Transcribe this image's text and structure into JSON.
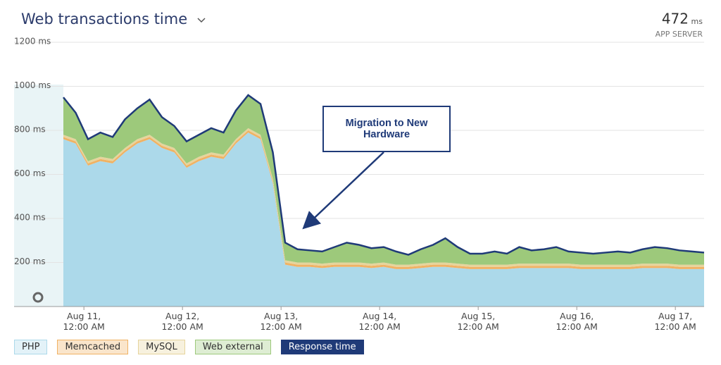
{
  "chart_data": {
    "type": "stacked-area",
    "title": "Web transactions time",
    "summary": {
      "value": "472",
      "unit": "ms",
      "label": "APP SERVER"
    },
    "annotation": "Migration to New Hardware",
    "xlim": [
      "Aug 10, 7:00 AM",
      "Aug 17, 7:00 AM"
    ],
    "xticks": [
      "Aug 11, 12:00 AM",
      "Aug 12, 12:00 AM",
      "Aug 13, 12:00 AM",
      "Aug 14, 12:00 AM",
      "Aug 15, 12:00 AM",
      "Aug 16, 12:00 AM",
      "Aug 17, 12:00 AM"
    ],
    "ylim": [
      0,
      1200
    ],
    "yticks": [
      {
        "value": 200,
        "label": "200 ms"
      },
      {
        "value": 400,
        "label": "400 ms"
      },
      {
        "value": 600,
        "label": "600 ms"
      },
      {
        "value": 800,
        "label": "800 ms"
      },
      {
        "value": 1000,
        "label": "1000 ms"
      },
      {
        "value": 1200,
        "label": "1200 ms"
      }
    ],
    "grid": true,
    "x": [
      "Aug 10, 7:00 PM",
      "Aug 10, 10:00 PM",
      "Aug 11, 1:00 AM",
      "Aug 11, 4:00 AM",
      "Aug 11, 7:00 AM",
      "Aug 11, 10:00 AM",
      "Aug 11, 1:00 PM",
      "Aug 11, 4:00 PM",
      "Aug 11, 7:00 PM",
      "Aug 11, 10:00 PM",
      "Aug 12, 1:00 AM",
      "Aug 12, 4:00 AM",
      "Aug 12, 7:00 AM",
      "Aug 12, 10:00 AM",
      "Aug 12, 1:00 PM",
      "Aug 12, 4:00 PM",
      "Aug 12, 7:00 PM",
      "Aug 12, 10:00 PM",
      "Aug 13, 1:00 AM",
      "Aug 13, 4:00 AM",
      "Aug 13, 7:00 AM",
      "Aug 13, 10:00 AM",
      "Aug 13, 1:00 PM",
      "Aug 13, 4:00 PM",
      "Aug 13, 7:00 PM",
      "Aug 13, 10:00 PM",
      "Aug 14, 1:00 AM",
      "Aug 14, 4:00 AM",
      "Aug 14, 7:00 AM",
      "Aug 14, 10:00 AM",
      "Aug 14, 1:00 PM",
      "Aug 14, 4:00 PM",
      "Aug 14, 7:00 PM",
      "Aug 14, 10:00 PM",
      "Aug 15, 1:00 AM",
      "Aug 15, 4:00 AM",
      "Aug 15, 7:00 AM",
      "Aug 15, 10:00 AM",
      "Aug 15, 1:00 PM",
      "Aug 15, 4:00 PM",
      "Aug 15, 7:00 PM",
      "Aug 15, 10:00 PM",
      "Aug 16, 1:00 AM",
      "Aug 16, 4:00 AM",
      "Aug 16, 7:00 AM",
      "Aug 16, 10:00 AM",
      "Aug 16, 1:00 PM",
      "Aug 16, 4:00 PM",
      "Aug 16, 7:00 PM",
      "Aug 16, 10:00 PM",
      "Aug 17, 1:00 AM",
      "Aug 17, 4:00 AM",
      "Aug 17, 7:00 AM"
    ],
    "series": [
      {
        "name": "PHP",
        "color": "#acd9ea",
        "values": [
          760,
          740,
          640,
          660,
          650,
          700,
          740,
          760,
          720,
          700,
          630,
          660,
          680,
          670,
          740,
          790,
          760,
          560,
          190,
          180,
          180,
          175,
          180,
          180,
          180,
          175,
          180,
          170,
          170,
          175,
          180,
          180,
          175,
          170,
          170,
          170,
          170,
          175,
          175,
          175,
          175,
          175,
          170,
          170,
          170,
          170,
          170,
          175,
          175,
          175,
          170,
          170,
          170
        ]
      },
      {
        "name": "Memcached",
        "color": "#f0b264",
        "values": [
          10,
          10,
          10,
          10,
          10,
          10,
          10,
          10,
          10,
          10,
          10,
          10,
          10,
          10,
          10,
          10,
          10,
          10,
          10,
          10,
          10,
          10,
          10,
          10,
          10,
          10,
          10,
          10,
          10,
          10,
          10,
          10,
          10,
          10,
          10,
          10,
          10,
          10,
          10,
          10,
          10,
          10,
          10,
          10,
          10,
          10,
          10,
          10,
          10,
          10,
          10,
          10,
          10
        ]
      },
      {
        "name": "MySQL",
        "color": "#e6d49c",
        "values": [
          10,
          10,
          10,
          10,
          10,
          10,
          10,
          10,
          10,
          10,
          10,
          10,
          10,
          10,
          10,
          10,
          10,
          10,
          10,
          10,
          10,
          10,
          10,
          10,
          10,
          10,
          10,
          10,
          10,
          10,
          10,
          10,
          10,
          10,
          10,
          10,
          10,
          10,
          10,
          10,
          10,
          10,
          10,
          10,
          10,
          10,
          10,
          10,
          10,
          10,
          10,
          10,
          10
        ]
      },
      {
        "name": "Web external",
        "color": "#9dc97b",
        "values": [
          170,
          120,
          100,
          110,
          100,
          130,
          140,
          160,
          120,
          100,
          100,
          100,
          110,
          100,
          130,
          150,
          140,
          120,
          80,
          60,
          55,
          55,
          70,
          90,
          80,
          70,
          70,
          60,
          45,
          65,
          80,
          110,
          75,
          50,
          50,
          60,
          50,
          75,
          60,
          65,
          75,
          55,
          55,
          50,
          55,
          60,
          55,
          65,
          75,
          70,
          65,
          60,
          55
        ]
      },
      {
        "name": "Response time",
        "color": "#1f3a78",
        "type": "line",
        "values": [
          950,
          880,
          760,
          790,
          770,
          850,
          900,
          940,
          860,
          820,
          750,
          780,
          810,
          790,
          890,
          960,
          920,
          700,
          290,
          260,
          255,
          250,
          270,
          290,
          280,
          265,
          270,
          250,
          235,
          260,
          280,
          310,
          270,
          240,
          240,
          250,
          240,
          270,
          255,
          260,
          270,
          250,
          245,
          240,
          245,
          250,
          245,
          260,
          270,
          265,
          255,
          250,
          245
        ]
      }
    ]
  }
}
